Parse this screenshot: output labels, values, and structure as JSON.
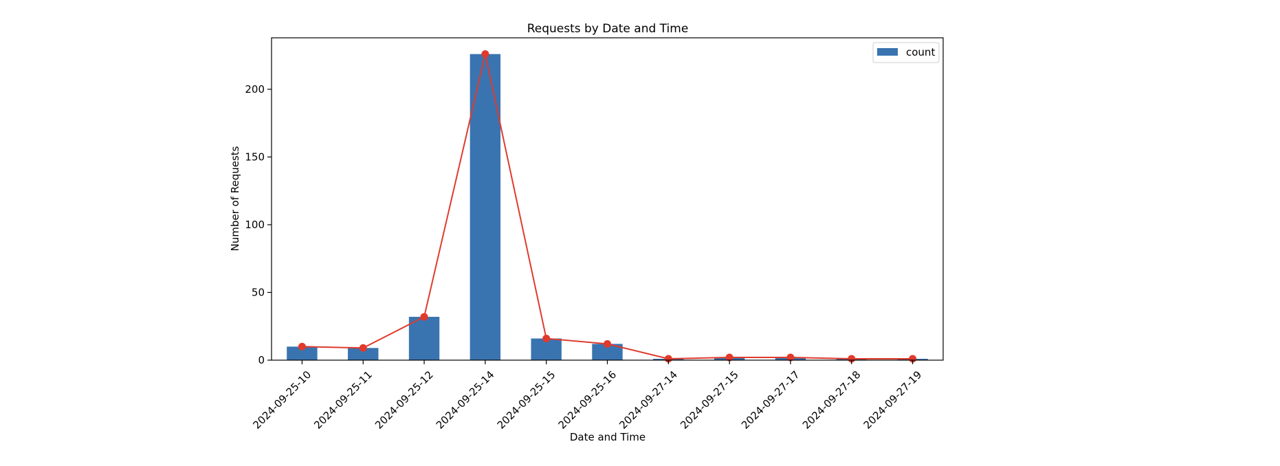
{
  "chart_data": {
    "type": "bar",
    "title": "Requests by Date and Time",
    "xlabel": "Date and Time",
    "ylabel": "Number of Requests",
    "categories": [
      "2024-09-25-10",
      "2024-09-25-11",
      "2024-09-25-12",
      "2024-09-25-14",
      "2024-09-25-15",
      "2024-09-25-16",
      "2024-09-27-14",
      "2024-09-27-15",
      "2024-09-27-17",
      "2024-09-27-18",
      "2024-09-27-19"
    ],
    "series": [
      {
        "name": "count",
        "kind": "bar",
        "values": [
          10,
          9,
          32,
          226,
          16,
          12,
          1,
          2,
          2,
          1,
          1
        ]
      },
      {
        "kind": "line",
        "values": [
          10,
          9,
          32,
          226,
          16,
          12,
          1,
          2,
          2,
          1,
          1
        ]
      }
    ],
    "ylim": [
      0,
      238
    ],
    "yticks": [
      0,
      50,
      100,
      150,
      200
    ],
    "grid": false,
    "legend": "top-right",
    "colors": {
      "bar": "#3a74b0",
      "line": "#e03a2c"
    }
  }
}
